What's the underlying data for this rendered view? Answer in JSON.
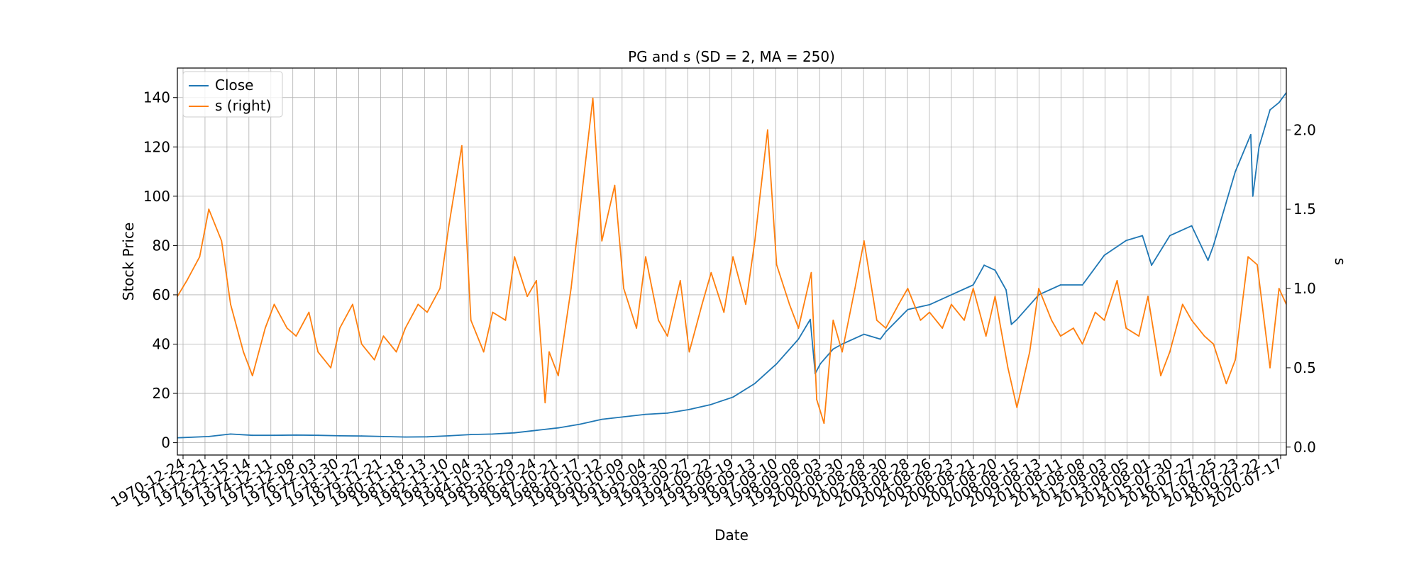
{
  "chart_data": {
    "type": "line",
    "title": "PG and s (SD = 2, MA = 250)",
    "xlabel": "Date",
    "ylabel": "Stock Price",
    "ylabel_right": "s",
    "xlim": [
      "1970-12-24",
      "2021-10-01"
    ],
    "ylim": [
      -5,
      152
    ],
    "ylim_right": [
      -0.05,
      2.39
    ],
    "yticks": [
      0,
      20,
      40,
      60,
      80,
      100,
      120,
      140
    ],
    "yticks_right": [
      0.0,
      0.5,
      1.0,
      1.5,
      2.0
    ],
    "ytick_labels_right": [
      "0.0",
      "0.5",
      "1.0",
      "1.5",
      "2.0"
    ],
    "xtick_labels": [
      "1970-12-24",
      "1971-12-21",
      "1972-12-15",
      "1973-12-14",
      "1974-12-11",
      "1975-12-08",
      "1976-12-03",
      "1977-11-30",
      "1978-11-27",
      "1979-11-21",
      "1980-11-18",
      "1981-11-13",
      "1982-11-10",
      "1983-11-04",
      "1984-10-31",
      "1985-10-29",
      "1986-10-24",
      "1987-10-21",
      "1988-10-17",
      "1989-10-12",
      "1990-10-09",
      "1991-10-04",
      "1992-09-30",
      "1993-09-27",
      "1994-09-22",
      "1995-09-19",
      "1996-09-13",
      "1997-09-10",
      "1998-09-08",
      "1999-09-03",
      "2000-08-30",
      "2001-08-28",
      "2002-08-30",
      "2003-08-28",
      "2004-08-26",
      "2005-08-23",
      "2006-08-21",
      "2007-08-20",
      "2008-08-15",
      "2009-08-13",
      "2010-08-11",
      "2011-08-08",
      "2012-08-03",
      "2013-08-05",
      "2014-08-01",
      "2015-07-30",
      "2016-07-27",
      "2017-07-25",
      "2018-07-23",
      "2019-07-22",
      "2020-07-17"
    ],
    "grid": true,
    "legend_position": "top-left",
    "series": [
      {
        "name": "Close",
        "axis": "left",
        "color": "#1f77b4",
        "x": [
          "1970-12-24",
          "1972-06-01",
          "1973-06-01",
          "1974-06-01",
          "1975-06-01",
          "1976-06-01",
          "1977-06-01",
          "1978-06-01",
          "1979-06-01",
          "1980-06-01",
          "1981-06-01",
          "1982-06-01",
          "1983-06-01",
          "1984-06-01",
          "1985-06-01",
          "1986-06-01",
          "1987-06-01",
          "1988-06-01",
          "1989-06-01",
          "1990-06-01",
          "1991-06-01",
          "1992-06-01",
          "1993-06-01",
          "1994-06-01",
          "1995-06-01",
          "1996-06-01",
          "1997-06-01",
          "1998-06-01",
          "1999-06-01",
          "1999-12-15",
          "2000-03-07",
          "2000-06-01",
          "2001-01-01",
          "2001-06-01",
          "2002-06-01",
          "2003-03-01",
          "2003-06-01",
          "2004-06-01",
          "2005-06-01",
          "2006-06-01",
          "2007-06-01",
          "2007-12-01",
          "2008-06-01",
          "2008-12-01",
          "2009-03-01",
          "2009-06-01",
          "2010-06-01",
          "2011-06-01",
          "2012-06-01",
          "2013-06-01",
          "2014-06-01",
          "2015-03-01",
          "2015-08-01",
          "2016-06-01",
          "2017-06-01",
          "2018-03-01",
          "2018-06-01",
          "2019-06-01",
          "2020-02-15",
          "2020-03-20",
          "2020-07-01",
          "2021-01-01",
          "2021-06-01",
          "2021-10-01"
        ],
        "values": [
          2.0,
          2.5,
          3.5,
          3.0,
          3.0,
          3.1,
          3.0,
          2.8,
          2.7,
          2.5,
          2.3,
          2.4,
          2.8,
          3.3,
          3.5,
          4.0,
          5.0,
          6.0,
          7.5,
          9.5,
          10.5,
          11.5,
          12.0,
          13.5,
          15.5,
          18.5,
          24.0,
          32.0,
          42.0,
          50.0,
          28.0,
          32.0,
          38.0,
          40.0,
          44.0,
          42.0,
          45.0,
          54.0,
          56.0,
          60.0,
          64.0,
          72.0,
          70.0,
          62.0,
          48.0,
          50.0,
          60.0,
          64.0,
          64.0,
          76.0,
          82.0,
          84.0,
          72.0,
          84.0,
          88.0,
          74.0,
          80.0,
          110.0,
          125.0,
          100.0,
          120.0,
          135.0,
          138.0,
          142.0
        ]
      },
      {
        "name": "s (right)",
        "axis": "right",
        "color": "#ff7f0e",
        "x": [
          "1970-12-24",
          "1971-06-01",
          "1972-01-01",
          "1972-06-01",
          "1973-01-01",
          "1973-06-01",
          "1974-01-01",
          "1974-06-01",
          "1975-01-01",
          "1975-06-01",
          "1976-01-01",
          "1976-06-01",
          "1977-01-01",
          "1977-06-01",
          "1978-01-01",
          "1978-06-01",
          "1979-01-01",
          "1979-06-01",
          "1980-01-01",
          "1980-06-01",
          "1981-01-01",
          "1981-06-01",
          "1982-01-01",
          "1982-06-01",
          "1983-01-01",
          "1983-06-01",
          "1984-01-01",
          "1984-06-01",
          "1985-01-01",
          "1985-06-01",
          "1986-01-01",
          "1986-06-01",
          "1987-01-01",
          "1987-06-01",
          "1987-10-25",
          "1988-01-01",
          "1988-06-01",
          "1989-01-01",
          "1989-06-01",
          "1990-01-01",
          "1990-06-01",
          "1991-01-01",
          "1991-06-01",
          "1992-01-01",
          "1992-06-01",
          "1993-01-01",
          "1993-06-01",
          "1994-01-01",
          "1994-06-01",
          "1995-01-01",
          "1995-06-01",
          "1996-01-01",
          "1996-06-01",
          "1997-01-01",
          "1997-06-01",
          "1998-01-01",
          "1998-06-01",
          "1999-01-01",
          "1999-06-01",
          "2000-01-01",
          "2000-04-01",
          "2000-08-01",
          "2001-01-01",
          "2001-06-01",
          "2002-01-01",
          "2002-06-01",
          "2003-01-01",
          "2003-06-01",
          "2004-01-01",
          "2004-06-01",
          "2005-01-01",
          "2005-06-01",
          "2006-01-01",
          "2006-06-01",
          "2007-01-01",
          "2007-06-01",
          "2008-01-01",
          "2008-06-01",
          "2009-01-01",
          "2009-06-01",
          "2010-01-01",
          "2010-06-01",
          "2011-01-01",
          "2011-06-01",
          "2012-01-01",
          "2012-06-01",
          "2013-01-01",
          "2013-06-01",
          "2014-01-01",
          "2014-06-01",
          "2015-01-01",
          "2015-06-01",
          "2016-01-01",
          "2016-06-01",
          "2017-01-01",
          "2017-06-01",
          "2018-01-01",
          "2018-06-01",
          "2019-01-01",
          "2019-06-01",
          "2020-01-01",
          "2020-06-01",
          "2021-01-01",
          "2021-06-01",
          "2021-10-01"
        ],
        "values": [
          0.95,
          1.05,
          1.2,
          1.5,
          1.3,
          0.9,
          0.6,
          0.45,
          0.75,
          0.9,
          0.75,
          0.7,
          0.85,
          0.6,
          0.5,
          0.75,
          0.9,
          0.65,
          0.55,
          0.7,
          0.6,
          0.75,
          0.9,
          0.85,
          1.0,
          1.4,
          1.9,
          0.8,
          0.6,
          0.85,
          0.8,
          1.2,
          0.95,
          1.05,
          0.28,
          0.6,
          0.45,
          1.0,
          1.5,
          2.2,
          1.3,
          1.65,
          1.0,
          0.75,
          1.2,
          0.8,
          0.7,
          1.05,
          0.6,
          0.9,
          1.1,
          0.85,
          1.2,
          0.9,
          1.3,
          2.0,
          1.15,
          0.9,
          0.75,
          1.1,
          0.3,
          0.15,
          0.8,
          0.6,
          1.0,
          1.3,
          0.8,
          0.75,
          0.9,
          1.0,
          0.8,
          0.85,
          0.75,
          0.9,
          0.8,
          1.0,
          0.7,
          0.95,
          0.5,
          0.25,
          0.6,
          1.0,
          0.8,
          0.7,
          0.75,
          0.65,
          0.85,
          0.8,
          1.05,
          0.75,
          0.7,
          0.95,
          0.45,
          0.6,
          0.9,
          0.8,
          0.7,
          0.65,
          0.4,
          0.55,
          1.2,
          1.15,
          0.5,
          1.0,
          0.9
        ]
      }
    ]
  }
}
